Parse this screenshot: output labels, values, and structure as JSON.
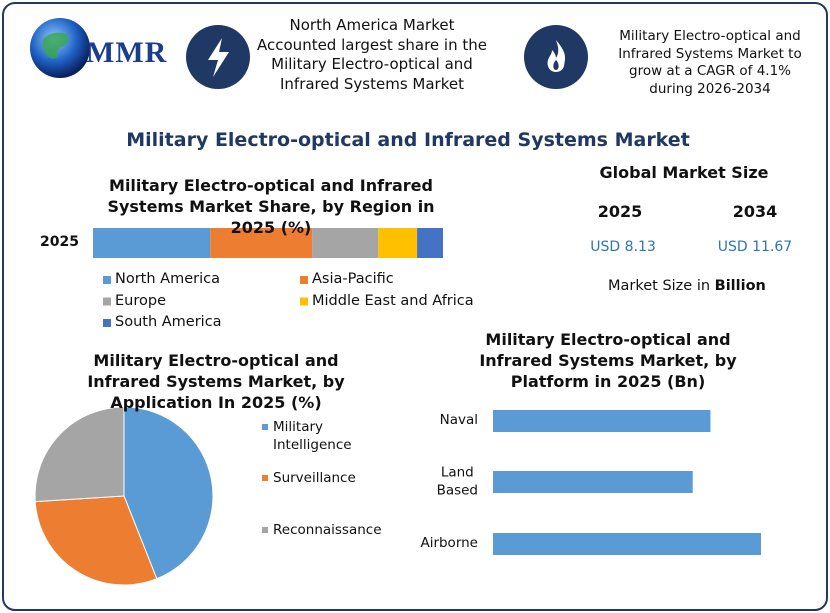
{
  "header": {
    "logo": "MMR",
    "info_1": "North America Market Accounted largest share in the Military Electro-optical and Infrared Systems Market",
    "info_2": "Military Electro-optical and Infrared Systems Market to grow at a CAGR of 4.1% during 2026-2034"
  },
  "title": "Military Electro-optical and Infrared Systems Market",
  "market_size": {
    "title": "Global Market Size",
    "years": [
      "2025",
      "2034"
    ],
    "values": [
      "USD 8.13",
      "USD 11.67"
    ],
    "unit_note": "Market Size in",
    "unit": "Billion"
  },
  "chart_data": [
    {
      "type": "stacked_bar",
      "title": "Military Electro-optical and Infrared Systems Market Share, by Region in 2025 (%)",
      "categories": [
        "2025"
      ],
      "series": [
        {
          "name": "North America",
          "color": "#5b9bd5",
          "values": [
            33.5
          ]
        },
        {
          "name": "Asia-Pacific",
          "color": "#ed7d31",
          "values": [
            29.1
          ]
        },
        {
          "name": "Europe",
          "color": "#a5a5a5",
          "values": [
            18.9
          ]
        },
        {
          "name": "Middle East and Africa",
          "color": "#ffc000",
          "values": [
            11.1
          ]
        },
        {
          "name": "South America",
          "color": "#4472c4",
          "values": [
            7.4
          ]
        }
      ]
    },
    {
      "type": "pie",
      "title": "Military Electro-optical and Infrared Systems Market, by Application In 2025 (%)",
      "categories": [
        "Military Intelligence",
        "Surveillance",
        "Reconnaissance"
      ],
      "values": [
        44,
        30,
        26
      ],
      "colors": [
        "#5b9bd5",
        "#ed7d31",
        "#a5a5a5"
      ]
    },
    {
      "type": "hbar",
      "title": "Military Electro-optical and Infrared Systems Market, by Platform in 2025 (Bn)",
      "categories": [
        "Naval",
        "Land Based",
        "Airborne"
      ],
      "values": [
        2.58,
        2.37,
        3.18
      ],
      "color": "#5b9bd5"
    }
  ]
}
